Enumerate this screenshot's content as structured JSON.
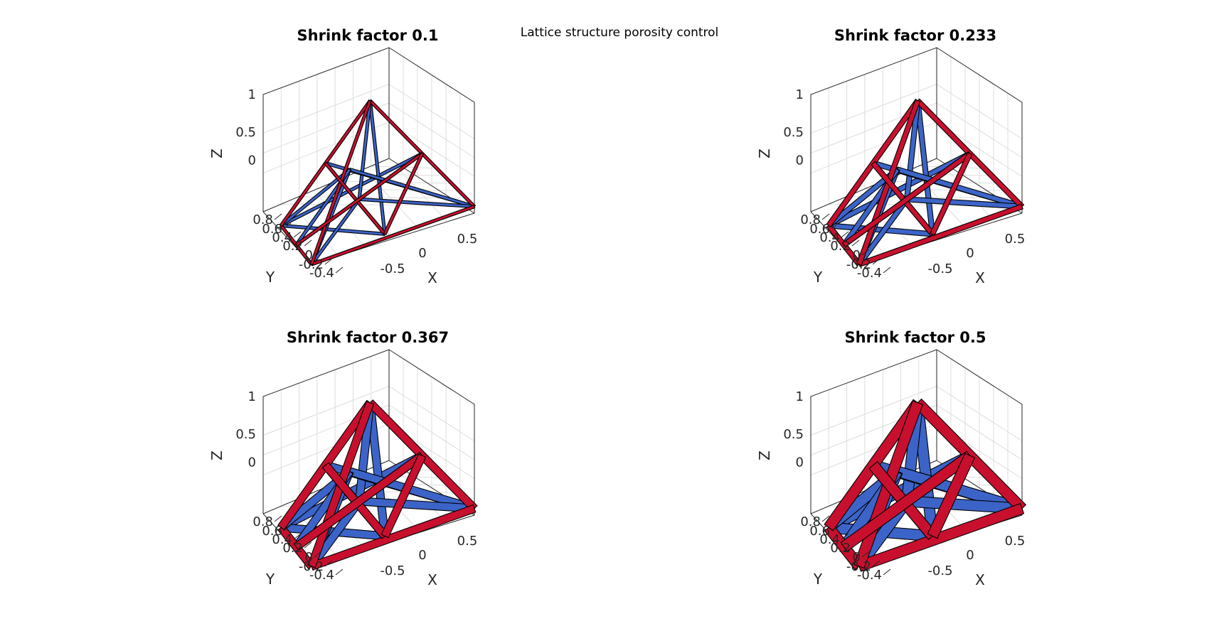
{
  "figure": {
    "title": "Lattice structure porosity control"
  },
  "colors": {
    "outer_faces": "#c8102e",
    "inner_faces": "#3c64c8",
    "edges": "#000000",
    "axes": "#262626",
    "grid": "#dcdcdc"
  },
  "chart_data": [
    {
      "type": "3d-mesh",
      "title": "Shrink factor 0.1",
      "shrink_factor": 0.1,
      "xlabel": "X",
      "ylabel": "Y",
      "zlabel": "Z",
      "xticks": [
        "-0.5",
        "0",
        "0.5"
      ],
      "yticks": [
        "-0.4",
        "-0.2",
        "0",
        "0.2",
        "0.4",
        "0.6",
        "0.8"
      ],
      "zticks": [
        "0",
        "0.5",
        "1"
      ],
      "grid": true
    },
    {
      "type": "3d-mesh",
      "title": "Shrink factor 0.233",
      "shrink_factor": 0.233,
      "xlabel": "X",
      "ylabel": "Y",
      "zlabel": "Z",
      "xticks": [
        "-0.5",
        "0",
        "0.5"
      ],
      "yticks": [
        "-0.4",
        "-0.2",
        "0",
        "0.2",
        "0.4",
        "0.6",
        "0.8"
      ],
      "zticks": [
        "0",
        "0.5",
        "1"
      ],
      "grid": true
    },
    {
      "type": "3d-mesh",
      "title": "Shrink factor 0.367",
      "shrink_factor": 0.367,
      "xlabel": "X",
      "ylabel": "Y",
      "zlabel": "Z",
      "xticks": [
        "-0.5",
        "0",
        "0.5"
      ],
      "yticks": [
        "-0.4",
        "-0.2",
        "0",
        "0.2",
        "0.4",
        "0.6",
        "0.8"
      ],
      "zticks": [
        "0",
        "0.5",
        "1"
      ],
      "grid": true
    },
    {
      "type": "3d-mesh",
      "title": "Shrink factor 0.5",
      "shrink_factor": 0.5,
      "xlabel": "X",
      "ylabel": "Y",
      "zlabel": "Z",
      "xticks": [
        "-0.5",
        "0",
        "0.5"
      ],
      "yticks": [
        "-0.4",
        "-0.2",
        "0",
        "0.2",
        "0.4",
        "0.6",
        "0.8"
      ],
      "zticks": [
        "0",
        "0.5",
        "1"
      ],
      "grid": true
    }
  ]
}
